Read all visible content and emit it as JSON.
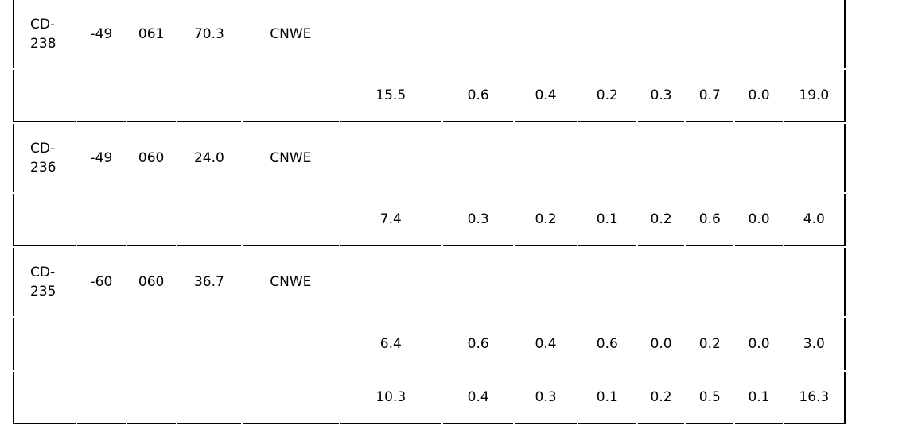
{
  "table": {
    "groups": [
      {
        "head": [
          "CD-238",
          "-49",
          "061",
          "70.3",
          "CNWE"
        ],
        "rows": [
          [
            "15.5",
            "0.6",
            "0.4",
            "0.2",
            "0.3",
            "0.7",
            "0.0",
            "19.0"
          ]
        ]
      },
      {
        "head": [
          "CD-236",
          "-49",
          "060",
          "24.0",
          "CNWE"
        ],
        "rows": [
          [
            "7.4",
            "0.3",
            "0.2",
            "0.1",
            "0.2",
            "0.6",
            "0.0",
            "4.0"
          ]
        ]
      },
      {
        "head": [
          "CD-235",
          "-60",
          "060",
          "36.7",
          "CNWE"
        ],
        "rows": [
          [
            "6.4",
            "0.6",
            "0.4",
            "0.6",
            "0.0",
            "0.2",
            "0.0",
            "3.0"
          ],
          [
            "10.3",
            "0.4",
            "0.3",
            "0.1",
            "0.2",
            "0.5",
            "0.1",
            "16.3"
          ]
        ]
      }
    ]
  }
}
